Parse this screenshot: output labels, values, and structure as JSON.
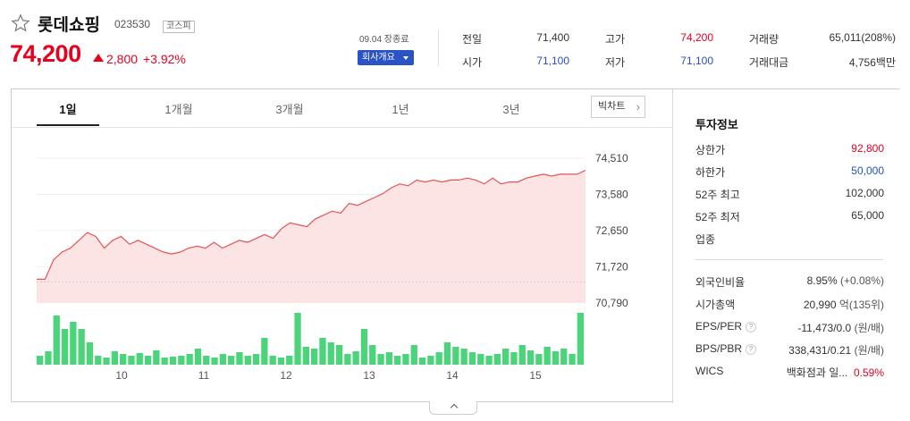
{
  "stock": {
    "name": "롯데쇼핑",
    "code": "023530",
    "market": "코스피",
    "price": "74,200",
    "change": "2,800",
    "change_rate": "+3.92%",
    "date_label": "09.04 장종료",
    "company_button": "회사개요"
  },
  "quote": {
    "prev_close_label": "전일",
    "prev_close": "71,400",
    "open_label": "시가",
    "open": "71,100",
    "high_label": "고가",
    "high": "74,200",
    "low_label": "저가",
    "low": "71,100",
    "volume_label": "거래량",
    "volume": "65,011(208%)",
    "value_label": "거래대금",
    "value_num": "4,756",
    "value_unit": "백만"
  },
  "tabs": [
    "1일",
    "1개월",
    "3개월",
    "1년",
    "3년"
  ],
  "bigchart_label": "빅차트",
  "info": {
    "title": "투자정보",
    "upper_limit_label": "상한가",
    "upper_limit": "92,800",
    "lower_limit_label": "하한가",
    "lower_limit": "50,000",
    "high52_label": "52주 최고",
    "high52": "102,000",
    "low52_label": "52주 최저",
    "low52": "65,000",
    "industry_label": "업종",
    "foreign_label": "외국인비율",
    "foreign": "8.95%",
    "foreign_change": "(+0.08%)",
    "mcap_label": "시가총액",
    "mcap": "20,990",
    "mcap_unit": "억(135위)",
    "eps_label": "EPS/PER",
    "eps": "-11,473/0.0",
    "eps_unit": "(원/배)",
    "bps_label": "BPS/PBR",
    "bps": "338,431/0.21",
    "bps_unit": "(원/배)",
    "wics_label": "WICS",
    "wics": "백화점과 일...",
    "wics_rate": "0.59%",
    "help_icon": "?"
  },
  "colors": {
    "up": "#e8001f",
    "down": "#2350c3",
    "volume": "#4cd47a",
    "line": "#e45555"
  },
  "chart_data": {
    "type": "line",
    "y_ticks": [
      "74,510",
      "73,580",
      "72,650",
      "71,720",
      "70,790"
    ],
    "ylim": [
      70790,
      74510
    ],
    "x_ticks": [
      "10",
      "11",
      "12",
      "13",
      "14",
      "15"
    ],
    "price_series": [
      71400,
      71400,
      71900,
      72100,
      72200,
      72400,
      72600,
      72500,
      72200,
      72400,
      72500,
      72300,
      72400,
      72300,
      72200,
      72100,
      72050,
      72100,
      72200,
      72250,
      72200,
      72350,
      72200,
      72300,
      72400,
      72350,
      72450,
      72550,
      72450,
      72700,
      72850,
      72800,
      72750,
      72950,
      73050,
      73150,
      73100,
      73350,
      73300,
      73400,
      73500,
      73600,
      73750,
      73850,
      73800,
      73950,
      73900,
      73950,
      73900,
      73950,
      73950,
      74000,
      73950,
      73850,
      74000,
      73850,
      73900,
      73900,
      74000,
      74050,
      74100,
      74050,
      74100,
      74100,
      74100,
      74200
    ],
    "volume_series": [
      10,
      15,
      55,
      40,
      48,
      40,
      25,
      10,
      8,
      15,
      12,
      10,
      13,
      10,
      16,
      8,
      9,
      10,
      12,
      18,
      10,
      8,
      12,
      10,
      14,
      10,
      12,
      30,
      10,
      8,
      10,
      58,
      20,
      18,
      30,
      25,
      22,
      12,
      15,
      40,
      22,
      12,
      14,
      10,
      12,
      22,
      8,
      10,
      14,
      25,
      20,
      18,
      14,
      12,
      10,
      12,
      18,
      14,
      22,
      16,
      12,
      20,
      15,
      18,
      12,
      58
    ]
  }
}
